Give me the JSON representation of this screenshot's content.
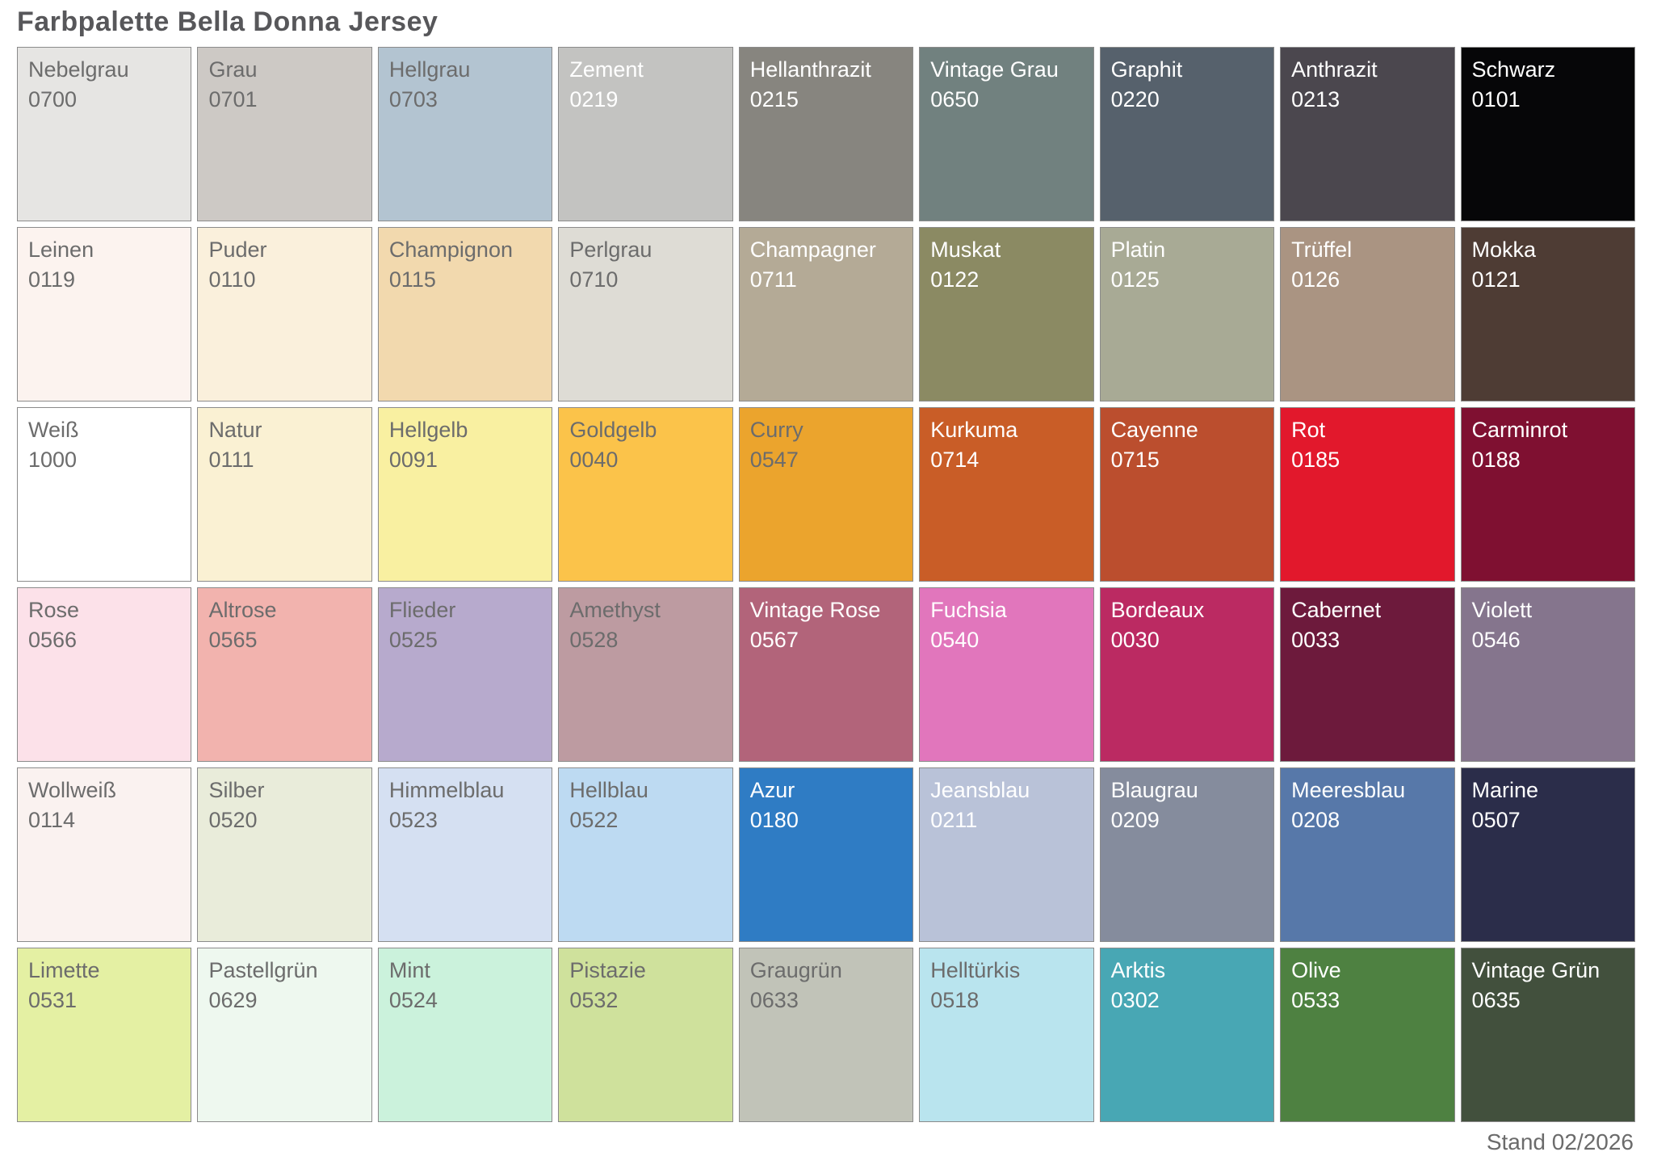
{
  "title": "Farbpalette Bella Donna Jersey",
  "footer": "Stand 02/2026",
  "palette": {
    "rows": 6,
    "cols": 9,
    "swatches": [
      {
        "name": "Nebelgrau",
        "code": "0700",
        "color": "#e6e5e3",
        "text": "dark"
      },
      {
        "name": "Grau",
        "code": "0701",
        "color": "#cdc9c5",
        "text": "dark"
      },
      {
        "name": "Hellgrau",
        "code": "0703",
        "color": "#b3c4d1",
        "text": "dark"
      },
      {
        "name": "Zement",
        "code": "0219",
        "color": "#c3c3c1",
        "text": "light"
      },
      {
        "name": "Hellanthrazit",
        "code": "0215",
        "color": "#87857f",
        "text": "light"
      },
      {
        "name": "Vintage Grau",
        "code": "0650",
        "color": "#71817f",
        "text": "light"
      },
      {
        "name": "Graphit",
        "code": "0220",
        "color": "#56616c",
        "text": "light"
      },
      {
        "name": "Anthrazit",
        "code": "0213",
        "color": "#4b474e",
        "text": "light"
      },
      {
        "name": "Schwarz",
        "code": "0101",
        "color": "#060608",
        "text": "light"
      },
      {
        "name": "Leinen",
        "code": "0119",
        "color": "#fcf3ef",
        "text": "dark"
      },
      {
        "name": "Puder",
        "code": "0110",
        "color": "#faf0dc",
        "text": "dark"
      },
      {
        "name": "Champignon",
        "code": "0115",
        "color": "#f2d9ae",
        "text": "dark"
      },
      {
        "name": "Perlgrau",
        "code": "0710",
        "color": "#dedcd5",
        "text": "dark"
      },
      {
        "name": "Champagner",
        "code": "0711",
        "color": "#b4aa96",
        "text": "light"
      },
      {
        "name": "Muskat",
        "code": "0122",
        "color": "#8b8a63",
        "text": "light"
      },
      {
        "name": "Platin",
        "code": "0125",
        "color": "#a8aa95",
        "text": "light"
      },
      {
        "name": "Trüffel",
        "code": "0126",
        "color": "#aa9482",
        "text": "light"
      },
      {
        "name": "Mokka",
        "code": "0121",
        "color": "#4e3c34",
        "text": "light"
      },
      {
        "name": "Weiß",
        "code": "1000",
        "color": "#ffffff",
        "text": "dark"
      },
      {
        "name": "Natur",
        "code": "0111",
        "color": "#faf1d3",
        "text": "dark"
      },
      {
        "name": "Hellgelb",
        "code": "0091",
        "color": "#f9f0a1",
        "text": "dark"
      },
      {
        "name": "Goldgelb",
        "code": "0040",
        "color": "#fbc34a",
        "text": "dark"
      },
      {
        "name": "Curry",
        "code": "0547",
        "color": "#eba42d",
        "text": "dark"
      },
      {
        "name": "Kurkuma",
        "code": "0714",
        "color": "#c95d27",
        "text": "light"
      },
      {
        "name": "Cayenne",
        "code": "0715",
        "color": "#bb4e2e",
        "text": "light"
      },
      {
        "name": "Rot",
        "code": "0185",
        "color": "#e2182c",
        "text": "light"
      },
      {
        "name": "Carminrot",
        "code": "0188",
        "color": "#7f1031",
        "text": "light"
      },
      {
        "name": "Rose",
        "code": "0566",
        "color": "#fce1e9",
        "text": "dark"
      },
      {
        "name": "Altrose",
        "code": "0565",
        "color": "#f2b3ae",
        "text": "dark"
      },
      {
        "name": "Flieder",
        "code": "0525",
        "color": "#b7aacd",
        "text": "dark"
      },
      {
        "name": "Amethyst",
        "code": "0528",
        "color": "#bd9ba1",
        "text": "dark"
      },
      {
        "name": "Vintage Rose",
        "code": "0567",
        "color": "#b2647a",
        "text": "light"
      },
      {
        "name": "Fuchsia",
        "code": "0540",
        "color": "#e176bc",
        "text": "light"
      },
      {
        "name": "Bordeaux",
        "code": "0030",
        "color": "#bb2a62",
        "text": "light"
      },
      {
        "name": "Cabernet",
        "code": "0033",
        "color": "#6d1a3c",
        "text": "light"
      },
      {
        "name": "Violett",
        "code": "0546",
        "color": "#85758d",
        "text": "light"
      },
      {
        "name": "Wollweiß",
        "code": "0114",
        "color": "#faf2f0",
        "text": "dark"
      },
      {
        "name": "Silber",
        "code": "0520",
        "color": "#e9ecda",
        "text": "dark"
      },
      {
        "name": "Himmelblau",
        "code": "0523",
        "color": "#d5e0f2",
        "text": "dark"
      },
      {
        "name": "Hellblau",
        "code": "0522",
        "color": "#bddaf2",
        "text": "dark"
      },
      {
        "name": "Azur",
        "code": "0180",
        "color": "#2f7cc4",
        "text": "light"
      },
      {
        "name": "Jeansblau",
        "code": "0211",
        "color": "#b9c2d8",
        "text": "light"
      },
      {
        "name": "Blaugrau",
        "code": "0209",
        "color": "#858c9d",
        "text": "light"
      },
      {
        "name": "Meeresblau",
        "code": "0208",
        "color": "#5778a9",
        "text": "light"
      },
      {
        "name": "Marine",
        "code": "0507",
        "color": "#2b2d4a",
        "text": "light"
      },
      {
        "name": "Limette",
        "code": "0531",
        "color": "#e4f0a3",
        "text": "dark"
      },
      {
        "name": "Pastellgrün",
        "code": "0629",
        "color": "#eef8ef",
        "text": "dark"
      },
      {
        "name": "Mint",
        "code": "0524",
        "color": "#cbf2dc",
        "text": "dark"
      },
      {
        "name": "Pistazie",
        "code": "0532",
        "color": "#cfe19c",
        "text": "dark"
      },
      {
        "name": "Graugrün",
        "code": "0633",
        "color": "#c1c3b8",
        "text": "dark"
      },
      {
        "name": "Helltürkis",
        "code": "0518",
        "color": "#b9e4ee",
        "text": "dark"
      },
      {
        "name": "Arktis",
        "code": "0302",
        "color": "#48a7b4",
        "text": "light"
      },
      {
        "name": "Olive",
        "code": "0533",
        "color": "#4e8141",
        "text": "light"
      },
      {
        "name": "Vintage Grün",
        "code": "0635",
        "color": "#42503d",
        "text": "light"
      }
    ]
  }
}
